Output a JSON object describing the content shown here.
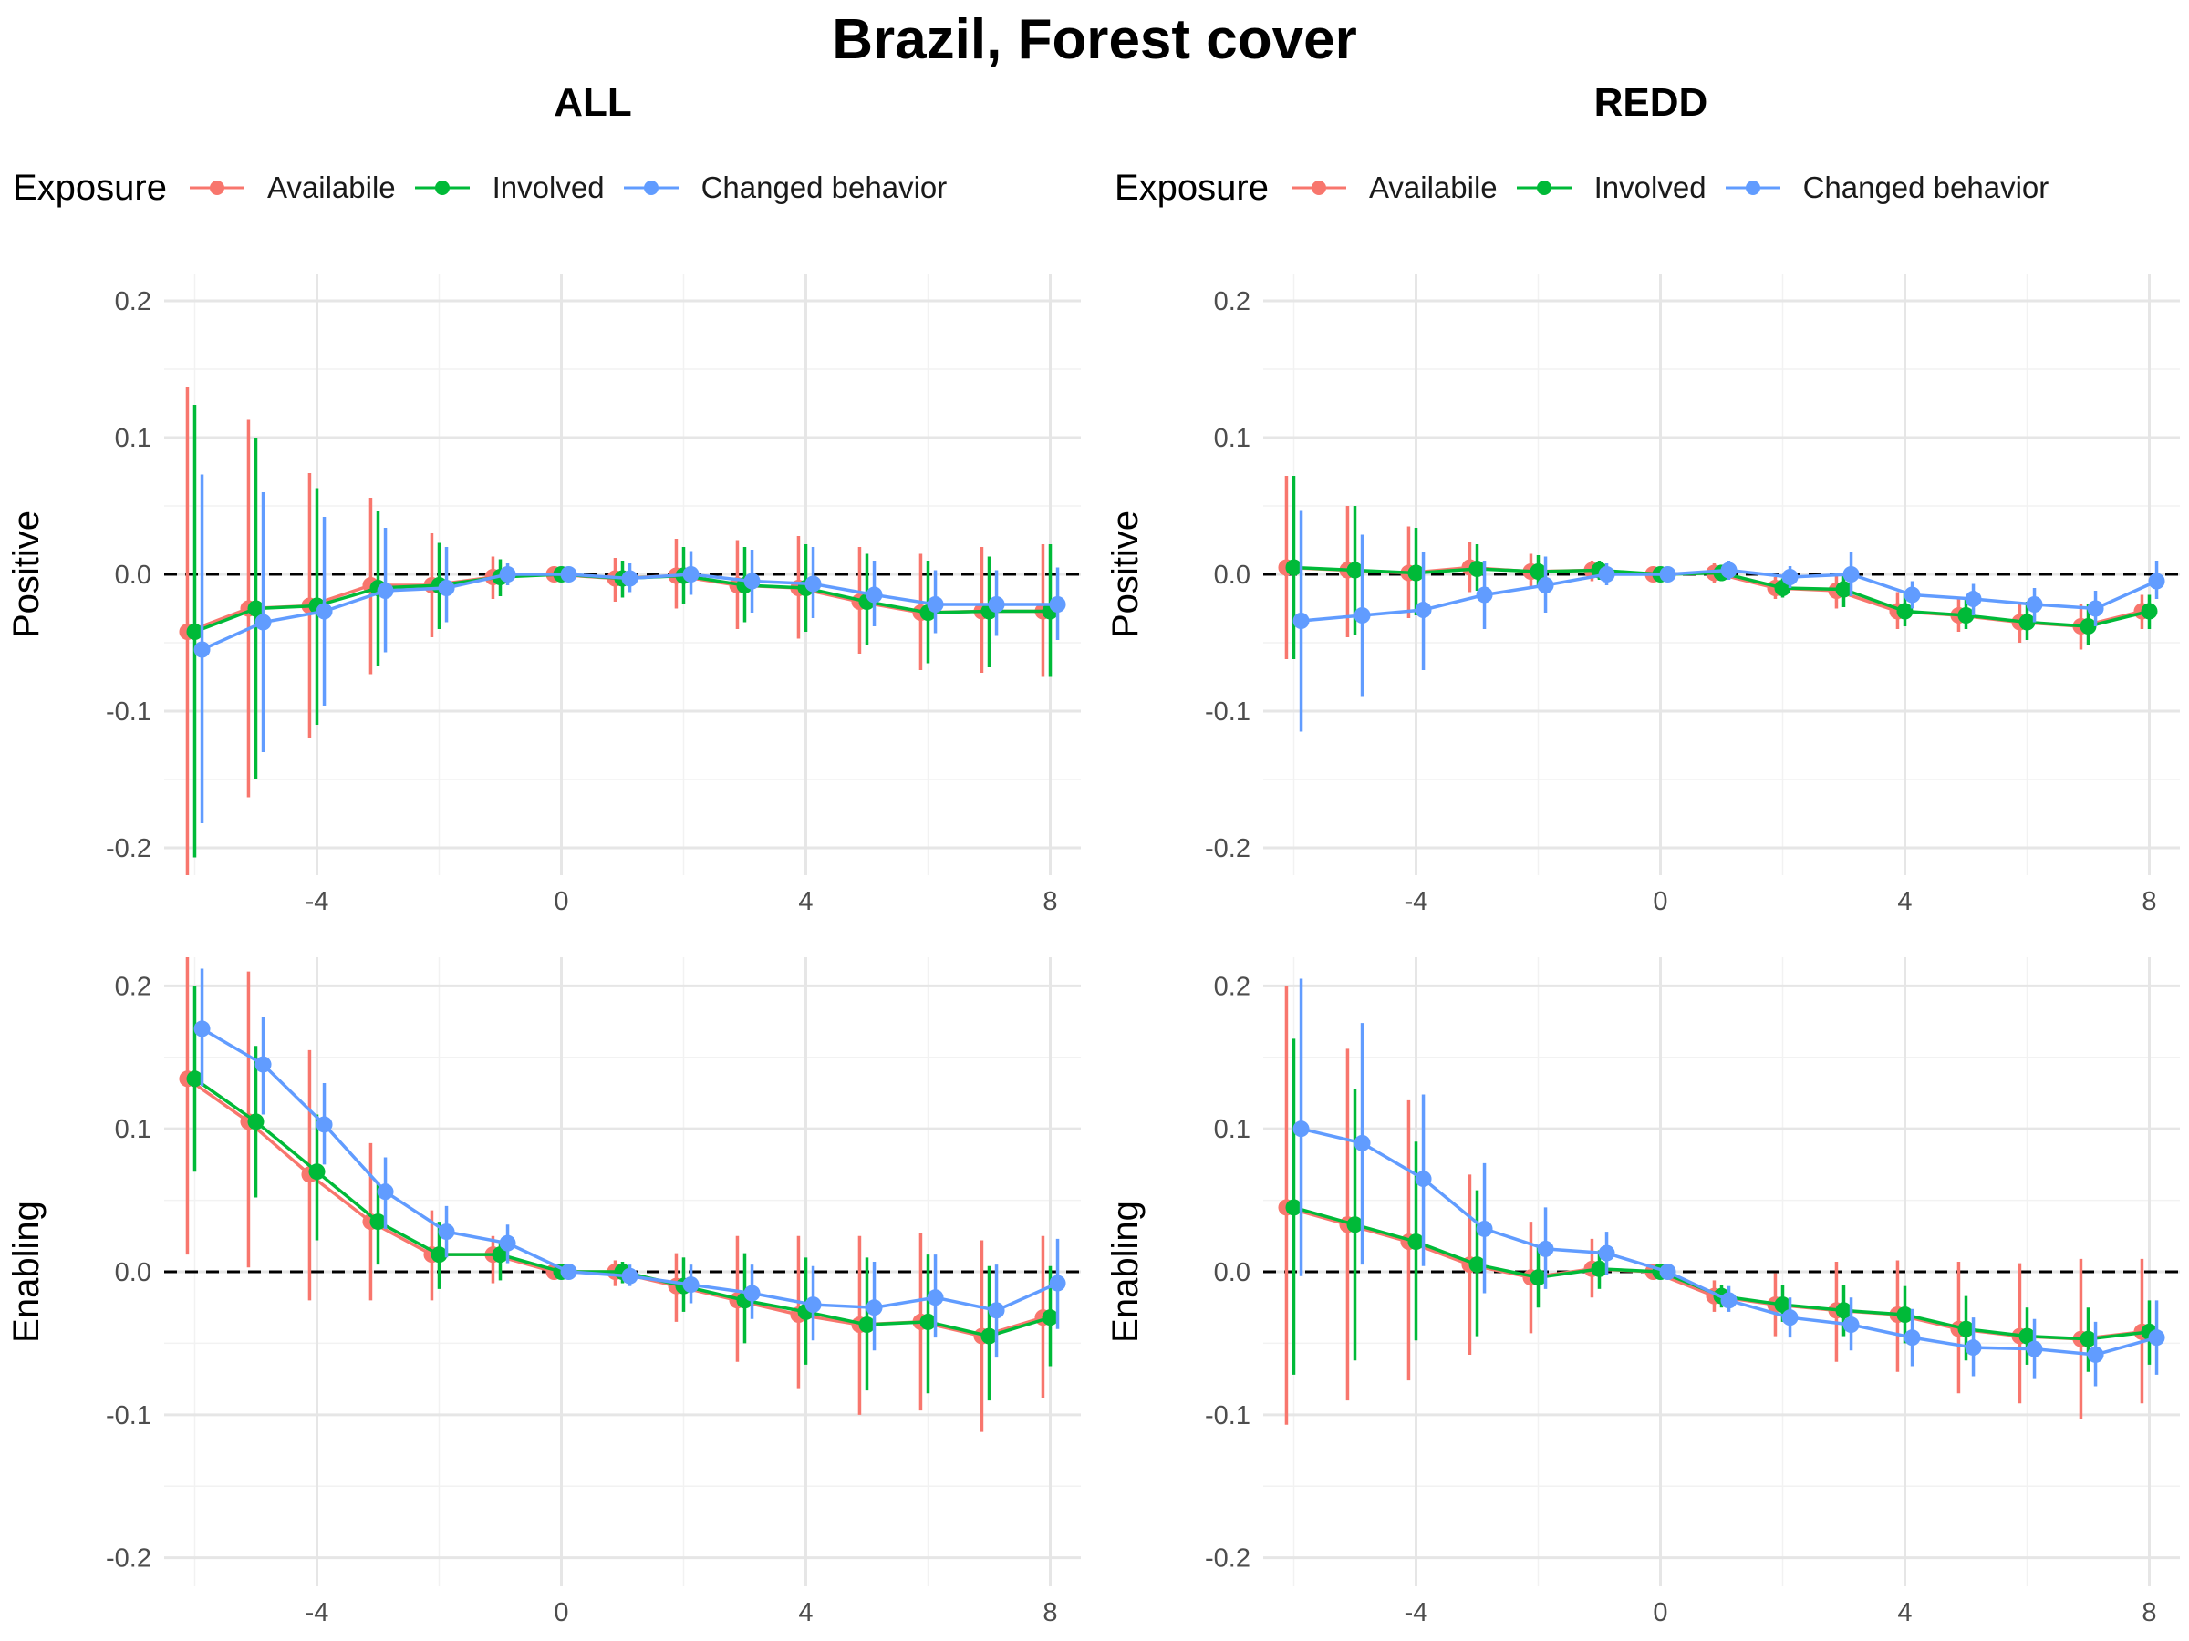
{
  "title": "Brazil, Forest cover",
  "columns": [
    "ALL",
    "REDD"
  ],
  "legend": {
    "title": "Exposure",
    "items": [
      {
        "label": "Availabile",
        "color": "#F8766D"
      },
      {
        "label": "Involved",
        "color": "#00BA38"
      },
      {
        "label": "Changed behavior",
        "color": "#619CFF"
      }
    ]
  },
  "chart_data": [
    {
      "type": "line",
      "panel": "ALL / Positive",
      "column": "ALL",
      "ylabel": "Positive",
      "xlim": [
        -6.5,
        8.5
      ],
      "ylim": [
        -0.22,
        0.22
      ],
      "xticks": [
        "-4",
        "0",
        "4",
        "8"
      ],
      "yticks": [
        "-0.2",
        "-0.1",
        "0.0",
        "0.1",
        "0.2"
      ],
      "reference_line": 0,
      "x": [
        -6,
        -5,
        -4,
        -3,
        -2,
        -1,
        0,
        1,
        2,
        3,
        4,
        5,
        6,
        7,
        8
      ],
      "series": [
        {
          "name": "Availabile",
          "values": [
            -0.042,
            -0.025,
            -0.023,
            -0.008,
            -0.008,
            -0.002,
            0,
            -0.003,
            -0.001,
            -0.008,
            -0.01,
            -0.02,
            -0.028,
            -0.027,
            -0.027
          ],
          "lower": [
            -0.22,
            -0.163,
            -0.12,
            -0.073,
            -0.046,
            -0.018,
            0,
            -0.02,
            -0.025,
            -0.04,
            -0.047,
            -0.058,
            -0.07,
            -0.072,
            -0.075
          ],
          "upper": [
            0.137,
            0.113,
            0.074,
            0.056,
            0.03,
            0.013,
            0,
            0.012,
            0.026,
            0.025,
            0.028,
            0.02,
            0.015,
            0.02,
            0.022
          ]
        },
        {
          "name": "Involved",
          "values": [
            -0.042,
            -0.025,
            -0.023,
            -0.01,
            -0.008,
            -0.002,
            0,
            -0.003,
            -0.001,
            -0.008,
            -0.01,
            -0.02,
            -0.028,
            -0.027,
            -0.027
          ],
          "lower": [
            -0.207,
            -0.15,
            -0.11,
            -0.067,
            -0.04,
            -0.016,
            0,
            -0.017,
            -0.022,
            -0.035,
            -0.042,
            -0.052,
            -0.065,
            -0.068,
            -0.075
          ],
          "upper": [
            0.124,
            0.1,
            0.063,
            0.046,
            0.023,
            0.011,
            0,
            0.01,
            0.02,
            0.02,
            0.022,
            0.015,
            0.01,
            0.013,
            0.022
          ]
        },
        {
          "name": "Changed behavior",
          "values": [
            -0.055,
            -0.035,
            -0.027,
            -0.012,
            -0.01,
            0,
            0,
            -0.003,
            0,
            -0.005,
            -0.007,
            -0.015,
            -0.022,
            -0.022,
            -0.022
          ],
          "lower": [
            -0.182,
            -0.13,
            -0.096,
            -0.057,
            -0.035,
            -0.008,
            0,
            -0.013,
            -0.015,
            -0.028,
            -0.032,
            -0.038,
            -0.043,
            -0.045,
            -0.048
          ],
          "upper": [
            0.073,
            0.06,
            0.042,
            0.034,
            0.02,
            0.008,
            0,
            0.008,
            0.017,
            0.018,
            0.02,
            0.01,
            0.003,
            0.003,
            0.005
          ]
        }
      ]
    },
    {
      "type": "line",
      "panel": "REDD / Positive",
      "column": "REDD",
      "ylabel": "Positive",
      "xlim": [
        -6.5,
        8.5
      ],
      "ylim": [
        -0.22,
        0.22
      ],
      "xticks": [
        "-4",
        "0",
        "4",
        "8"
      ],
      "yticks": [
        "-0.2",
        "-0.1",
        "0.0",
        "0.1",
        "0.2"
      ],
      "reference_line": 0,
      "x": [
        -6,
        -5,
        -4,
        -3,
        -2,
        -1,
        0,
        1,
        2,
        3,
        4,
        5,
        6,
        7,
        8
      ],
      "series": [
        {
          "name": "Availabile",
          "values": [
            0.005,
            0.003,
            0.001,
            0.005,
            0.002,
            0.003,
            0,
            0.001,
            -0.01,
            -0.012,
            -0.027,
            -0.03,
            -0.035,
            -0.038,
            -0.027
          ],
          "lower": [
            -0.062,
            -0.046,
            -0.032,
            -0.013,
            -0.01,
            -0.005,
            0,
            -0.006,
            -0.018,
            -0.025,
            -0.04,
            -0.042,
            -0.05,
            -0.055,
            -0.04
          ],
          "upper": [
            0.072,
            0.05,
            0.035,
            0.024,
            0.015,
            0.01,
            0,
            0.008,
            -0.002,
            0,
            -0.013,
            -0.018,
            -0.02,
            -0.022,
            -0.015
          ]
        },
        {
          "name": "Involved",
          "values": [
            0.005,
            0.003,
            0.001,
            0.004,
            0.002,
            0.003,
            0,
            0.001,
            -0.01,
            -0.011,
            -0.027,
            -0.03,
            -0.035,
            -0.038,
            -0.027
          ],
          "lower": [
            -0.062,
            -0.044,
            -0.03,
            -0.012,
            -0.01,
            -0.004,
            0,
            -0.005,
            -0.017,
            -0.024,
            -0.038,
            -0.04,
            -0.048,
            -0.052,
            -0.04
          ],
          "upper": [
            0.072,
            0.05,
            0.034,
            0.022,
            0.014,
            0.01,
            0,
            0.007,
            -0.003,
            0,
            -0.014,
            -0.018,
            -0.02,
            -0.022,
            -0.015
          ]
        },
        {
          "name": "Changed behavior",
          "values": [
            -0.034,
            -0.03,
            -0.026,
            -0.015,
            -0.008,
            0,
            0,
            0.003,
            -0.002,
            0,
            -0.015,
            -0.018,
            -0.022,
            -0.025,
            -0.005
          ],
          "lower": [
            -0.115,
            -0.089,
            -0.07,
            -0.04,
            -0.028,
            -0.008,
            0,
            -0.004,
            -0.01,
            -0.016,
            -0.025,
            -0.03,
            -0.035,
            -0.038,
            -0.018
          ],
          "upper": [
            0.047,
            0.029,
            0.016,
            0.01,
            0.013,
            0.008,
            0,
            0.01,
            0.006,
            0.016,
            -0.005,
            -0.007,
            -0.01,
            -0.012,
            0.01
          ]
        }
      ]
    },
    {
      "type": "line",
      "panel": "ALL / Enabling",
      "column": "ALL",
      "ylabel": "Enabling",
      "xlim": [
        -6.5,
        8.5
      ],
      "ylim": [
        -0.22,
        0.22
      ],
      "xticks": [
        "-4",
        "0",
        "4",
        "8"
      ],
      "yticks": [
        "-0.2",
        "-0.1",
        "0.0",
        "0.1",
        "0.2"
      ],
      "reference_line": 0,
      "x": [
        -6,
        -5,
        -4,
        -3,
        -2,
        -1,
        0,
        1,
        2,
        3,
        4,
        5,
        6,
        7,
        8
      ],
      "series": [
        {
          "name": "Availabile",
          "values": [
            0.135,
            0.105,
            0.068,
            0.035,
            0.012,
            0.012,
            0,
            0,
            -0.01,
            -0.02,
            -0.03,
            -0.037,
            -0.035,
            -0.045,
            -0.032
          ],
          "lower": [
            0.012,
            0.003,
            -0.02,
            -0.02,
            -0.02,
            -0.008,
            0,
            -0.01,
            -0.035,
            -0.063,
            -0.082,
            -0.1,
            -0.097,
            -0.112,
            -0.088
          ],
          "upper": [
            0.22,
            0.21,
            0.155,
            0.09,
            0.043,
            0.025,
            0,
            0.008,
            0.013,
            0.025,
            0.025,
            0.025,
            0.027,
            0.022,
            0.025
          ]
        },
        {
          "name": "Involved",
          "values": [
            0.135,
            0.105,
            0.07,
            0.035,
            0.012,
            0.012,
            0,
            0,
            -0.01,
            -0.02,
            -0.028,
            -0.037,
            -0.035,
            -0.045,
            -0.032
          ],
          "lower": [
            0.07,
            0.052,
            0.022,
            0.005,
            -0.012,
            -0.006,
            0,
            -0.008,
            -0.028,
            -0.05,
            -0.065,
            -0.083,
            -0.085,
            -0.09,
            -0.066
          ],
          "upper": [
            0.2,
            0.158,
            0.11,
            0.063,
            0.035,
            0.022,
            0,
            0.007,
            0.01,
            0.013,
            0.01,
            0.01,
            0.012,
            0.004,
            0.004
          ]
        },
        {
          "name": "Changed behavior",
          "values": [
            0.17,
            0.145,
            0.103,
            0.056,
            0.028,
            0.02,
            0,
            -0.003,
            -0.009,
            -0.015,
            -0.023,
            -0.025,
            -0.018,
            -0.027,
            -0.008
          ],
          "lower": [
            0.13,
            0.11,
            0.075,
            0.03,
            0.01,
            0.006,
            0,
            -0.01,
            -0.022,
            -0.033,
            -0.048,
            -0.055,
            -0.046,
            -0.06,
            -0.04
          ],
          "upper": [
            0.212,
            0.178,
            0.132,
            0.08,
            0.046,
            0.033,
            0,
            0.005,
            0.005,
            0.005,
            0.004,
            0.007,
            0.012,
            0.005,
            0.023
          ]
        }
      ]
    },
    {
      "type": "line",
      "panel": "REDD / Enabling",
      "column": "REDD",
      "ylabel": "Enabling",
      "xlim": [
        -6.5,
        8.5
      ],
      "ylim": [
        -0.22,
        0.22
      ],
      "xticks": [
        "-4",
        "0",
        "4",
        "8"
      ],
      "yticks": [
        "-0.2",
        "-0.1",
        "0.0",
        "0.1",
        "0.2"
      ],
      "reference_line": 0,
      "x": [
        -6,
        -5,
        -4,
        -3,
        -2,
        -1,
        0,
        1,
        2,
        3,
        4,
        5,
        6,
        7,
        8
      ],
      "series": [
        {
          "name": "Availabile",
          "values": [
            0.045,
            0.033,
            0.021,
            0.005,
            -0.004,
            0.002,
            0,
            -0.017,
            -0.023,
            -0.027,
            -0.03,
            -0.04,
            -0.045,
            -0.047,
            -0.042
          ],
          "lower": [
            -0.107,
            -0.09,
            -0.076,
            -0.058,
            -0.043,
            -0.018,
            0,
            -0.028,
            -0.045,
            -0.063,
            -0.07,
            -0.085,
            -0.092,
            -0.103,
            -0.092
          ],
          "upper": [
            0.2,
            0.156,
            0.12,
            0.068,
            0.035,
            0.023,
            0,
            -0.006,
            -0.001,
            0.007,
            0.008,
            0.007,
            0.006,
            0.009,
            0.009
          ]
        },
        {
          "name": "Involved",
          "values": [
            0.045,
            0.033,
            0.021,
            0.005,
            -0.004,
            0.002,
            0,
            -0.017,
            -0.023,
            -0.027,
            -0.03,
            -0.04,
            -0.045,
            -0.047,
            -0.042
          ],
          "lower": [
            -0.072,
            -0.062,
            -0.048,
            -0.045,
            -0.025,
            -0.012,
            0,
            -0.025,
            -0.035,
            -0.045,
            -0.05,
            -0.062,
            -0.065,
            -0.07,
            -0.065
          ],
          "upper": [
            0.163,
            0.128,
            0.091,
            0.057,
            0.018,
            0.015,
            0,
            -0.009,
            -0.009,
            -0.009,
            -0.01,
            -0.017,
            -0.025,
            -0.025,
            -0.02
          ]
        },
        {
          "name": "Changed behavior",
          "values": [
            0.1,
            0.09,
            0.065,
            0.03,
            0.016,
            0.013,
            0,
            -0.02,
            -0.032,
            -0.037,
            -0.046,
            -0.053,
            -0.054,
            -0.058,
            -0.046
          ],
          "lower": [
            -0.003,
            0.005,
            0.004,
            -0.015,
            -0.012,
            -0.002,
            0,
            -0.028,
            -0.046,
            -0.055,
            -0.066,
            -0.073,
            -0.075,
            -0.08,
            -0.072
          ],
          "upper": [
            0.205,
            0.174,
            0.124,
            0.076,
            0.045,
            0.028,
            0,
            -0.01,
            -0.018,
            -0.018,
            -0.026,
            -0.032,
            -0.033,
            -0.035,
            -0.02
          ]
        }
      ]
    }
  ]
}
